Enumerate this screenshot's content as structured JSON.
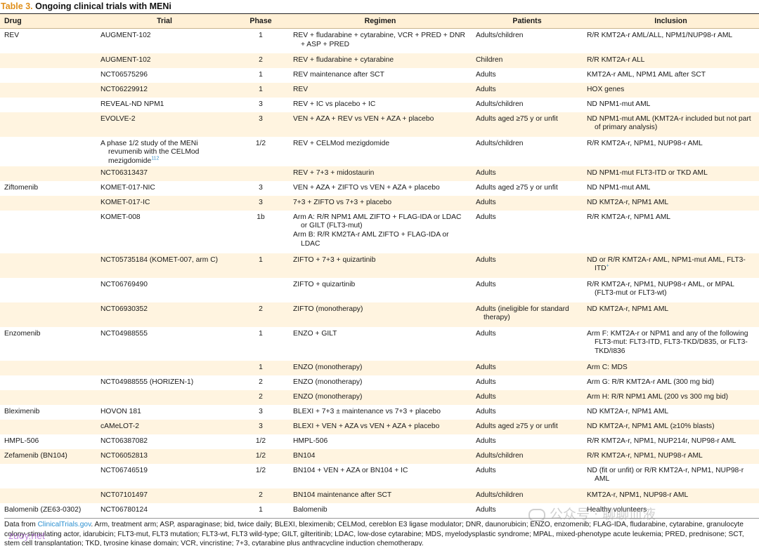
{
  "caption": {
    "label": "Table 3.",
    "title": "Ongoing clinical trials with MENi"
  },
  "headers": {
    "drug": "Drug",
    "trial": "Trial",
    "phase": "Phase",
    "regimen": "Regimen",
    "patients": "Patients",
    "inclusion": "Inclusion"
  },
  "rows": [
    {
      "drug": "REV",
      "trial": "AUGMENT-102",
      "phase": "1",
      "regimen": "REV + fludarabine + cytarabine, VCR + PRED + DNR + ASP + PRED",
      "patients": "Adults/children",
      "inclusion": "R/R KMT2A-r AML/ALL, NPM1/NUP98-r AML"
    },
    {
      "drug": "",
      "trial": "AUGMENT-102",
      "phase": "2",
      "regimen": "REV + fludarabine + cytarabine",
      "patients": "Children",
      "inclusion": "R/R KMT2A-r ALL"
    },
    {
      "drug": "",
      "trial": "NCT06575296",
      "phase": "1",
      "regimen": "REV maintenance after SCT",
      "patients": "Adults",
      "inclusion": "KMT2A-r AML, NPM1 AML after SCT"
    },
    {
      "drug": "",
      "trial": "NCT06229912",
      "phase": "1",
      "regimen": "REV",
      "patients": "Adults",
      "inclusion": "HOX genes"
    },
    {
      "drug": "",
      "trial": "REVEAL-ND NPM1",
      "phase": "3",
      "regimen": "REV + IC vs placebo + IC",
      "patients": "Adults/children",
      "inclusion": "ND NPM1-mut AML"
    },
    {
      "drug": "",
      "trial": "EVOLVE-2",
      "phase": "3",
      "regimen": "VEN + AZA + REV vs VEN + AZA + placebo",
      "patients": "Adults aged ≥75 y or unfit",
      "inclusion": "ND NPM1-mut AML (KMT2A-r included but not part of primary analysis)"
    },
    {
      "drug": "",
      "trial": "A phase 1/2 study of the MENi revumenib with the CELMod mezigdomide",
      "trial_ref": "112",
      "phase": "1/2",
      "regimen": "REV + CELMod mezigdomide",
      "patients": "Adults/children",
      "inclusion": "R/R KMT2A-r, NPM1, NUP98-r AML"
    },
    {
      "drug": "",
      "trial": "NCT06313437",
      "phase": "",
      "regimen": "REV + 7+3 + midostaurin",
      "patients": "Adults",
      "inclusion": "ND NPM1-mut FLT3-ITD or TKD AML"
    },
    {
      "drug": "Ziftomenib",
      "trial": "KOMET-017-NIC",
      "phase": "3",
      "regimen": "VEN + AZA + ZIFTO vs VEN + AZA + placebo",
      "patients": "Adults aged ≥75 y or unfit",
      "inclusion": "ND NPM1-mut AML"
    },
    {
      "drug": "",
      "trial": "KOMET-017-IC",
      "phase": "3",
      "regimen": "7+3 + ZIFTO vs 7+3 + placebo",
      "patients": "Adults",
      "inclusion": "ND KMT2A-r, NPM1 AML"
    },
    {
      "drug": "",
      "trial": "KOMET-008",
      "phase": "1b",
      "regimen": "Arm A: R/R NPM1 AML ZIFTO + FLAG-IDA or LDAC or GILT (FLT3-mut)",
      "regimen2": "Arm B: R/R KM2TA-r AML ZIFTO + FLAG-IDA or LDAC",
      "patients": "Adults",
      "inclusion": "R/R KMT2A-r, NPM1 AML"
    },
    {
      "drug": "",
      "trial": "NCT05735184 (KOMET-007, arm C)",
      "phase": "1",
      "regimen": "ZIFTO + 7+3 + quizartinib",
      "patients": "Adults",
      "inclusion": "ND or R/R KMT2A-r AML, NPM1-mut AML, FLT3-ITD",
      "inclusion_sup": "+"
    },
    {
      "drug": "",
      "trial": "NCT06769490",
      "phase": "",
      "regimen": "ZIFTO + quizartinib",
      "patients": "Adults",
      "inclusion": "R/R KMT2A-r, NPM1, NUP98-r AML, or MPAL (FLT3-mut or FLT3-wt)"
    },
    {
      "drug": "",
      "trial": "NCT06930352",
      "phase": "2",
      "regimen": "ZIFTO (monotherapy)",
      "patients": "Adults (ineligible for standard therapy)",
      "inclusion": "ND KMT2A-r, NPM1 AML"
    },
    {
      "drug": "Enzomenib",
      "trial": "NCT04988555",
      "phase": "1",
      "regimen": "ENZO + GILT",
      "patients": "Adults",
      "inclusion": "Arm F: KMT2A-r or NPM1 and any of the following FLT3-mut: FLT3-ITD, FLT3-TKD/D835, or FLT3-TKD/I836"
    },
    {
      "drug": "",
      "trial": "",
      "phase": "1",
      "regimen": "ENZO (monotherapy)",
      "patients": "Adults",
      "inclusion": "Arm C: MDS"
    },
    {
      "drug": "",
      "trial": "NCT04988555 (HORIZEN-1)",
      "phase": "2",
      "regimen": "ENZO (monotherapy)",
      "patients": "Adults",
      "inclusion": "Arm G: R/R KMT2A-r AML (300 mg bid)"
    },
    {
      "drug": "",
      "trial": "",
      "phase": "2",
      "regimen": "ENZO (monotherapy)",
      "patients": "Adults",
      "inclusion": "Arm H: R/R NPM1 AML (200 vs 300 mg bid)"
    },
    {
      "drug": "Bleximenib",
      "trial": "HOVON 181",
      "phase": "3",
      "regimen": "BLEXI + 7+3 ± maintenance vs 7+3 + placebo",
      "patients": "Adults",
      "inclusion": "ND KMT2A-r, NPM1 AML"
    },
    {
      "drug": "",
      "trial": "cAMeLOT-2",
      "phase": "3",
      "regimen": "BLEXI + VEN + AZA vs VEN + AZA + placebo",
      "patients": "Adults aged ≥75 y or unfit",
      "inclusion": "ND KMT2A-r, NPM1 AML (≥10% blasts)"
    },
    {
      "drug": "HMPL-506",
      "trial": "NCT06387082",
      "phase": "1/2",
      "regimen": "HMPL-506",
      "patients": "Adults",
      "inclusion": "R/R KMT2A-r, NPM1, NUP214r, NUP98-r AML"
    },
    {
      "drug": "Zefamenib (BN104)",
      "trial": "NCT06052813",
      "phase": "1/2",
      "regimen": "BN104",
      "patients": "Adults/children",
      "inclusion": "R/R KMT2A-r, NPM1, NUP98-r AML"
    },
    {
      "drug": "",
      "trial": "NCT06746519",
      "phase": "1/2",
      "regimen": "BN104 + VEN + AZA or BN104 + IC",
      "patients": "Adults",
      "inclusion": "ND (fit or unfit) or R/R KMT2A-r, NPM1, NUP98-r AML"
    },
    {
      "drug": "",
      "trial": "NCT07101497",
      "phase": "2",
      "regimen": "BN104 maintenance after SCT",
      "patients": "Adults/children",
      "inclusion": "KMT2A-r, NPM1, NUP98-r AML"
    },
    {
      "drug": "Balomenib (ZE63-0302)",
      "trial": "NCT06780124",
      "phase": "1",
      "regimen": "Balomenib",
      "patients": "Adults",
      "inclusion": "Healthy volunteers"
    }
  ],
  "footer": {
    "prefix": "Data from ",
    "source": "ClinicalTrials.gov",
    "text": ". Arm, treatment arm; ASP, asparaginase; bid, twice daily; BLEXI, bleximenib; CELMod, cereblon E3 ligase modulator; DNR, daunorubicin; ENZO, enzomenib; FLAG-IDA, fludarabine, cytarabine, granulocyte colony-stimulating actor, idarubicin; FLT3-mut, FLT3 mutation; FLT3-wt, FLT3 wild-type; GILT, gilteritinib; LDAC, low-dose cytarabine; MDS, myelodysplastic syndrome; MPAL, mixed-phenotype acute leukemia; PRED, prednisone; SCT, stem cell transplantation; TKD, tyrosine kinase domain; VCR, vincristine; 7+3, cytarabine plus anthracycline induction chemotherapy."
  },
  "watermark": {
    "text": "公众号 · 聊聊血液",
    "site": "zuoy.net"
  }
}
